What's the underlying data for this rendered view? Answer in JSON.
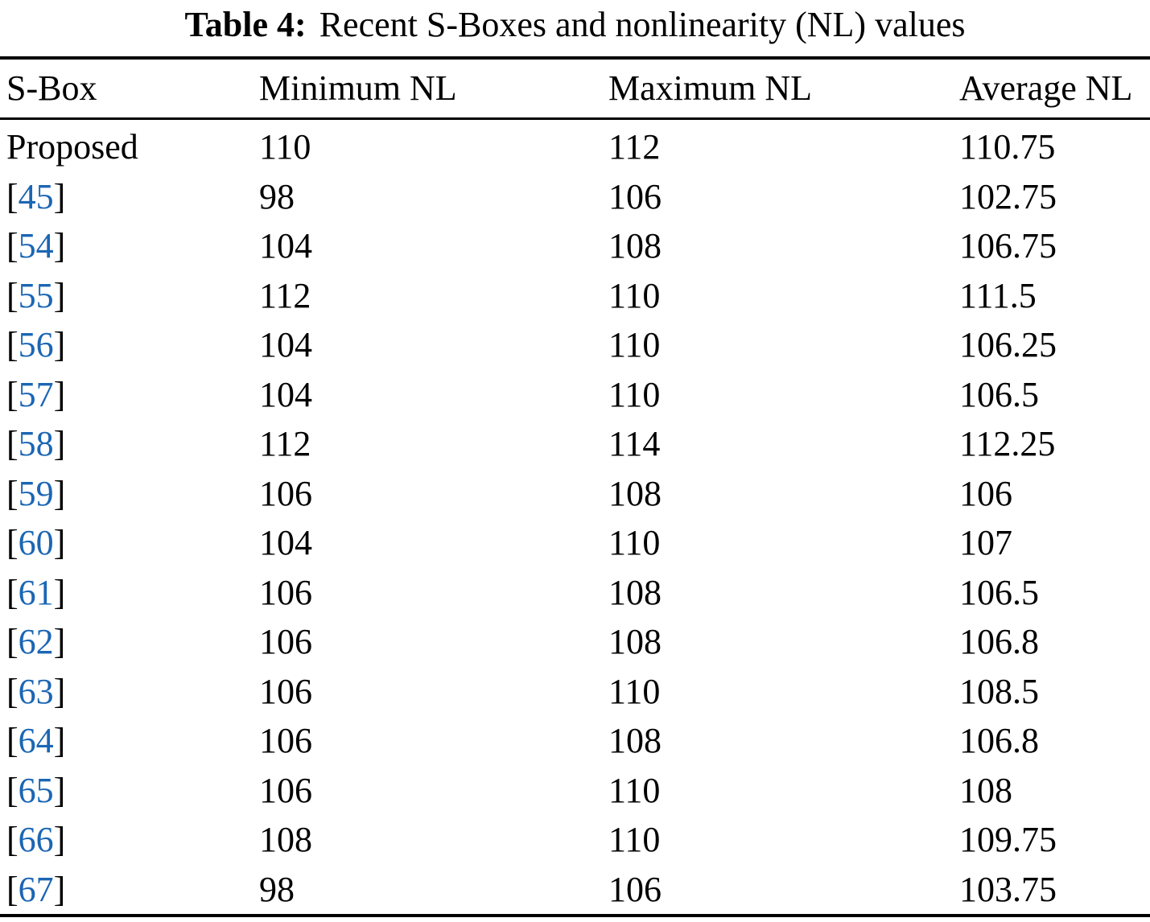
{
  "caption": {
    "label": "Table 4:",
    "text": "Recent S-Boxes and nonlinearity (NL) values"
  },
  "columns": [
    "S-Box",
    "Minimum NL",
    "Maximum NL",
    "Average NL"
  ],
  "rows": [
    {
      "sbox": "Proposed",
      "ref": null,
      "min": "110",
      "max": "112",
      "avg": "110.75"
    },
    {
      "sbox": null,
      "ref": "45",
      "min": "98",
      "max": "106",
      "avg": "102.75"
    },
    {
      "sbox": null,
      "ref": "54",
      "min": "104",
      "max": "108",
      "avg": "106.75"
    },
    {
      "sbox": null,
      "ref": "55",
      "min": "112",
      "max": "110",
      "avg": "111.5"
    },
    {
      "sbox": null,
      "ref": "56",
      "min": "104",
      "max": "110",
      "avg": "106.25"
    },
    {
      "sbox": null,
      "ref": "57",
      "min": "104",
      "max": "110",
      "avg": "106.5"
    },
    {
      "sbox": null,
      "ref": "58",
      "min": "112",
      "max": "114",
      "avg": "112.25"
    },
    {
      "sbox": null,
      "ref": "59",
      "min": "106",
      "max": "108",
      "avg": "106"
    },
    {
      "sbox": null,
      "ref": "60",
      "min": "104",
      "max": "110",
      "avg": "107"
    },
    {
      "sbox": null,
      "ref": "61",
      "min": "106",
      "max": "108",
      "avg": "106.5"
    },
    {
      "sbox": null,
      "ref": "62",
      "min": "106",
      "max": "108",
      "avg": "106.8"
    },
    {
      "sbox": null,
      "ref": "63",
      "min": "106",
      "max": "110",
      "avg": "108.5"
    },
    {
      "sbox": null,
      "ref": "64",
      "min": "106",
      "max": "108",
      "avg": "106.8"
    },
    {
      "sbox": null,
      "ref": "65",
      "min": "106",
      "max": "110",
      "avg": "108"
    },
    {
      "sbox": null,
      "ref": "66",
      "min": "108",
      "max": "110",
      "avg": "109.75"
    },
    {
      "sbox": null,
      "ref": "67",
      "min": "98",
      "max": "106",
      "avg": "103.75"
    }
  ],
  "colors": {
    "citation": "#1b66b4",
    "text": "#000000",
    "rule": "#000000"
  }
}
